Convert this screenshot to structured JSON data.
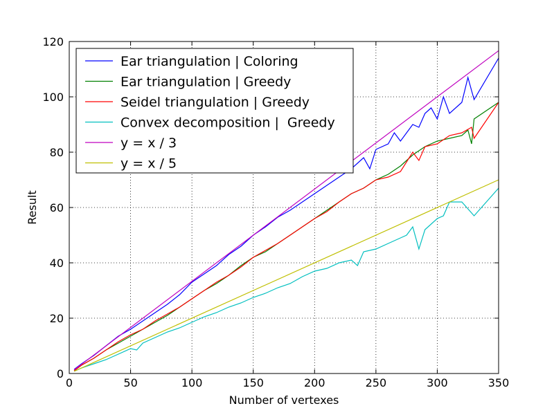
{
  "chart_data": {
    "type": "line",
    "title": "",
    "xlabel": "Number of vertexes",
    "ylabel": "Result",
    "xlim": [
      0,
      350
    ],
    "ylim": [
      0,
      120
    ],
    "xticks": [
      0,
      50,
      100,
      150,
      200,
      250,
      300,
      350
    ],
    "yticks": [
      0,
      20,
      40,
      60,
      80,
      100,
      120
    ],
    "grid": true,
    "legend_position": "top-left",
    "series": [
      {
        "name": "Ear triangulation | Coloring",
        "color": "#0000ff",
        "x": [
          4,
          10,
          20,
          30,
          40,
          50,
          60,
          70,
          80,
          90,
          100,
          110,
          120,
          130,
          140,
          150,
          160,
          170,
          180,
          190,
          200,
          210,
          220,
          230,
          240,
          245,
          250,
          260,
          265,
          270,
          280,
          285,
          290,
          295,
          300,
          305,
          310,
          320,
          325,
          330,
          350
        ],
        "y": [
          1.5,
          3.5,
          6.5,
          10,
          13.5,
          16,
          19,
          22,
          25,
          28.5,
          33,
          36,
          39,
          43,
          46,
          50,
          53,
          56.5,
          59,
          62,
          65,
          68,
          71,
          74,
          78,
          74,
          81,
          83,
          87,
          84,
          90,
          89,
          94,
          96,
          92,
          100,
          94,
          98,
          107,
          99,
          114
        ]
      },
      {
        "name": "Ear triangulation | Greedy",
        "color": "#008000",
        "x": [
          4,
          10,
          20,
          30,
          40,
          50,
          60,
          70,
          80,
          90,
          100,
          110,
          120,
          130,
          140,
          150,
          160,
          170,
          180,
          190,
          200,
          210,
          220,
          230,
          240,
          250,
          260,
          270,
          280,
          290,
          300,
          310,
          320,
          325,
          328,
          330,
          350
        ],
        "y": [
          1,
          3,
          5.5,
          8.5,
          11,
          13.5,
          16,
          18.5,
          21,
          24,
          27,
          30,
          32.5,
          35.5,
          39,
          42,
          44,
          47,
          50,
          53,
          56,
          59,
          62,
          65,
          67,
          70,
          72,
          75,
          79,
          82,
          84,
          85,
          86,
          88,
          83,
          92,
          98
        ]
      },
      {
        "name": "Seidel triangulation | Greedy",
        "color": "#ff0000",
        "x": [
          4,
          10,
          20,
          30,
          40,
          50,
          60,
          70,
          80,
          90,
          100,
          110,
          120,
          130,
          140,
          150,
          160,
          170,
          180,
          190,
          200,
          210,
          220,
          230,
          240,
          250,
          260,
          270,
          280,
          285,
          290,
          300,
          310,
          320,
          328,
          330,
          350
        ],
        "y": [
          1,
          3,
          5.5,
          8.5,
          11.5,
          14,
          16,
          19,
          21.5,
          24,
          27,
          30,
          33,
          35.5,
          38.5,
          42,
          44.5,
          47,
          50,
          53,
          56,
          58.5,
          62,
          65,
          67,
          70,
          71,
          73,
          80,
          77,
          82,
          83,
          86,
          87,
          89,
          85,
          98
        ]
      },
      {
        "name": "Convex decomposition |  Greedy",
        "color": "#00bfbf",
        "x": [
          4,
          10,
          20,
          30,
          40,
          50,
          55,
          60,
          70,
          80,
          90,
          100,
          110,
          120,
          130,
          140,
          150,
          160,
          170,
          180,
          190,
          200,
          210,
          220,
          230,
          235,
          240,
          250,
          260,
          270,
          275,
          280,
          285,
          290,
          300,
          305,
          310,
          315,
          320,
          330,
          350
        ],
        "y": [
          0.8,
          2,
          3.5,
          5,
          7,
          9,
          8.5,
          11,
          13,
          15,
          16.5,
          18.5,
          20.5,
          22,
          24,
          25.5,
          27.5,
          29,
          31,
          32.5,
          35,
          37,
          38,
          40,
          41,
          39,
          44,
          45,
          47,
          49,
          50,
          53,
          45,
          52,
          56,
          57,
          62,
          62,
          62,
          57,
          67
        ]
      },
      {
        "name": "y = x / 3",
        "color": "#bf00bf",
        "x": [
          4,
          350
        ],
        "y": [
          1.33,
          116.67
        ]
      },
      {
        "name": "y = x / 5",
        "color": "#bfbf00",
        "x": [
          4,
          350
        ],
        "y": [
          0.8,
          70
        ]
      }
    ]
  }
}
